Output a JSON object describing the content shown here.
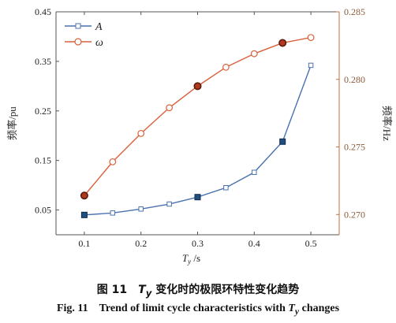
{
  "chart_data": {
    "type": "line",
    "x": [
      0.1,
      0.15,
      0.2,
      0.25,
      0.3,
      0.35,
      0.4,
      0.45,
      0.5
    ],
    "x_ticks": [
      "0.1",
      "0.2",
      "0.3",
      "0.4",
      "0.5"
    ],
    "x_tick_values": [
      0.1,
      0.2,
      0.3,
      0.4,
      0.5
    ],
    "xlabel_main": "T",
    "xlabel_sub": "y",
    "xlabel_unit": " /s",
    "xlim": [
      0.05,
      0.55
    ],
    "y_left": {
      "label": "频率/pu",
      "lim": [
        0.0,
        0.45
      ],
      "ticks": [
        "0.05",
        "0.15",
        "0.25",
        "0.35",
        "0.45"
      ],
      "tick_values": [
        0.05,
        0.15,
        0.25,
        0.35,
        0.45
      ]
    },
    "y_right": {
      "label": "频率/Hz",
      "lim": [
        0.2685,
        0.285
      ],
      "ticks": [
        "0.270",
        "0.275",
        "0.280",
        "0.285"
      ],
      "tick_values": [
        0.27,
        0.275,
        0.28,
        0.285
      ]
    },
    "series": [
      {
        "name": "A",
        "axis": "left",
        "color": "#4a72b0",
        "marker": "square",
        "values": [
          0.04,
          0.044,
          0.052,
          0.062,
          0.076,
          0.095,
          0.126,
          0.188,
          0.342
        ],
        "highlighted": [
          0,
          4,
          7
        ]
      },
      {
        "name": "ω",
        "axis": "right",
        "color": "#d9603b",
        "marker": "circle",
        "values": [
          0.2714,
          0.2739,
          0.276,
          0.2779,
          0.2795,
          0.2809,
          0.2819,
          0.2827,
          0.2831
        ],
        "highlighted": [
          0,
          4,
          7
        ]
      }
    ]
  },
  "caption": {
    "cn_number": "图 11",
    "cn_var": "T",
    "cn_sub": "y",
    "cn_text": " 变化时的极限环特性变化趋势",
    "en_number": "Fig. 11",
    "en_text_before": "Trend of limit cycle characteristics with ",
    "en_var": "T",
    "en_sub": "y",
    "en_text_after": " changes"
  }
}
